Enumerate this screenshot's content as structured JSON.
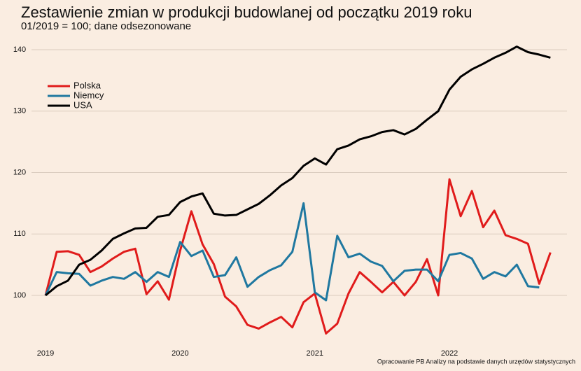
{
  "chart_data": {
    "type": "line",
    "title": "Zestawienie zmian w produkcji budowlanej od początku 2019 roku",
    "subtitle": "01/2019 = 100; dane odsezonowane",
    "source": "Opracowanie PB Analizy na podstawie danych urzędów statystycznych",
    "categories": [
      "2019",
      null,
      null,
      null,
      null,
      null,
      null,
      null,
      null,
      null,
      null,
      null,
      "2020",
      null,
      null,
      null,
      null,
      null,
      null,
      null,
      null,
      null,
      null,
      null,
      "2021",
      null,
      null,
      null,
      null,
      null,
      null,
      null,
      null,
      null,
      null,
      null,
      "2022",
      null,
      null,
      null,
      null,
      null,
      null,
      null,
      null,
      null
    ],
    "ylim": [
      92,
      142
    ],
    "yticks": [
      100,
      110,
      120,
      130,
      140
    ],
    "grid": true,
    "legend": "upper left",
    "series": [
      {
        "name": "Polska",
        "color": "#e01b1b",
        "values": [
          100,
          107.1,
          107.2,
          106.6,
          103.8,
          104.7,
          106.0,
          107.1,
          107.6,
          100.2,
          102.3,
          99.3,
          107.3,
          113.7,
          108.3,
          105.1,
          99.8,
          98.2,
          95.2,
          94.6,
          95.6,
          96.5,
          94.8,
          98.9,
          100.3,
          93.8,
          95.4,
          100.3,
          103.8,
          102.2,
          100.5,
          102.2,
          100.0,
          102.2,
          105.9,
          100.0,
          118.9,
          112.9,
          117.0,
          111.1,
          113.8,
          109.8,
          109.2,
          108.4,
          101.9,
          107.0
        ]
      },
      {
        "name": "Niemcy",
        "color": "#1f78a0",
        "values": [
          100,
          103.8,
          103.6,
          103.5,
          101.6,
          102.4,
          103.0,
          102.7,
          103.8,
          102.2,
          103.8,
          103.0,
          108.7,
          106.4,
          107.3,
          103.0,
          103.3,
          106.2,
          101.4,
          103.0,
          104.1,
          104.9,
          107.1,
          115.0,
          100.5,
          99.2,
          109.7,
          106.2,
          106.8,
          105.5,
          104.8,
          102.3,
          104.0,
          104.2,
          104.2,
          102.3,
          106.6,
          106.9,
          106.0,
          102.7,
          103.8,
          103.1,
          105.0,
          101.5,
          101.3,
          null
        ]
      },
      {
        "name": "USA",
        "color": "#000000",
        "values": [
          100,
          101.5,
          102.4,
          105.0,
          105.8,
          107.3,
          109.2,
          110.1,
          110.9,
          111.0,
          112.8,
          113.1,
          115.2,
          116.1,
          116.6,
          113.3,
          113.0,
          113.1,
          114.0,
          114.9,
          116.3,
          117.9,
          119.1,
          121.1,
          122.3,
          121.3,
          123.8,
          124.4,
          125.4,
          125.9,
          126.6,
          126.9,
          126.2,
          127.1,
          128.6,
          130.0,
          133.5,
          135.6,
          136.8,
          137.7,
          138.7,
          139.5,
          140.5,
          139.6,
          139.2,
          138.7
        ]
      }
    ]
  }
}
